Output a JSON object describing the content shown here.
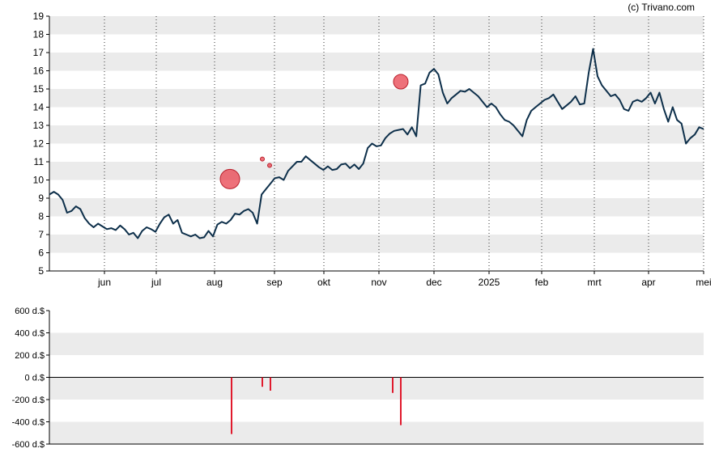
{
  "credit": "(c) Trivano.com",
  "colors": {
    "price_line": "#0d2f4a",
    "band": "#ebebeb",
    "marker": "#e8414e",
    "volume_bar": "#e01a2d",
    "axis": "#000000"
  },
  "chart_data": [
    {
      "type": "line",
      "y_ticks": [
        "5",
        "6",
        "7",
        "8",
        "9",
        "10",
        "11",
        "12",
        "13",
        "14",
        "15",
        "16",
        "17",
        "18",
        "19"
      ],
      "ylim": [
        5,
        19
      ],
      "x_ticks": [
        "jun",
        "jul",
        "aug",
        "sep",
        "okt",
        "nov",
        "dec",
        "2025",
        "feb",
        "mrt",
        "apr",
        "mei"
      ],
      "grid": "horizontal bands, vertical dotted lines at month ticks",
      "series": [
        {
          "values": [
            9.2,
            9.35,
            9.2,
            8.9,
            8.2,
            8.3,
            8.55,
            8.4,
            7.9,
            7.6,
            7.4,
            7.6,
            7.45,
            7.3,
            7.35,
            7.25,
            7.5,
            7.3,
            7.0,
            7.1,
            6.8,
            7.2,
            7.4,
            7.3,
            7.15,
            7.6,
            7.95,
            8.1,
            7.6,
            7.8,
            7.1,
            7.0,
            6.9,
            7.0,
            6.8,
            6.85,
            7.2,
            6.9,
            7.55,
            7.7,
            7.6,
            7.8,
            8.15,
            8.1,
            8.3,
            8.4,
            8.2,
            7.6,
            9.2,
            9.5,
            9.8,
            10.1,
            10.15,
            10.0,
            10.5,
            10.75,
            11.0,
            11.0,
            11.3,
            11.1,
            10.9,
            10.7,
            10.55,
            10.75,
            10.55,
            10.6,
            10.85,
            10.9,
            10.65,
            10.85,
            10.6,
            10.9,
            11.75,
            12.0,
            11.85,
            11.9,
            12.3,
            12.55,
            12.7,
            12.75,
            12.8,
            12.5,
            12.9,
            12.4,
            15.2,
            15.3,
            15.9,
            16.1,
            15.8,
            14.8,
            14.2,
            14.5,
            14.7,
            14.9,
            14.85,
            15.0,
            14.8,
            14.6,
            14.3,
            14.0,
            14.2,
            14.0,
            13.6,
            13.3,
            13.2,
            13.0,
            12.7,
            12.4,
            13.3,
            13.8,
            14.0,
            14.2,
            14.4,
            14.5,
            14.7,
            14.3,
            13.9,
            14.1,
            14.3,
            14.6,
            14.15,
            14.2,
            15.9,
            17.2,
            15.7,
            15.2,
            14.9,
            14.6,
            14.7,
            14.4,
            13.9,
            13.8,
            14.3,
            14.4,
            14.3,
            14.5,
            14.8,
            14.2,
            14.8,
            13.9,
            13.2,
            14.0,
            13.3,
            13.1,
            12.0,
            12.3,
            12.5,
            12.9,
            12.8
          ],
          "line_style": "solid"
        }
      ],
      "markers": [
        {
          "x_label": "aug",
          "value": 10.05,
          "size": "large"
        },
        {
          "x_label": "sep",
          "value": 11.15,
          "size": "small"
        },
        {
          "x_label": "sep",
          "value": 10.8,
          "size": "small"
        },
        {
          "x_label": "nov",
          "value": 15.4,
          "size": "medium"
        }
      ]
    },
    {
      "type": "bar",
      "y_ticks": [
        "600 d.$",
        "400 d.$",
        "200 d.$",
        "0 d.$",
        "-200 d.$",
        "-400 d.$",
        "-600 d.$"
      ],
      "ylim": [
        -600,
        600
      ],
      "bars": [
        {
          "x_label": "aug",
          "value": -510
        },
        {
          "x_label": "sep",
          "value": -85
        },
        {
          "x_label": "sep",
          "value": -120
        },
        {
          "x_label": "nov",
          "value": -140
        },
        {
          "x_label": "nov",
          "value": -430
        }
      ]
    }
  ]
}
